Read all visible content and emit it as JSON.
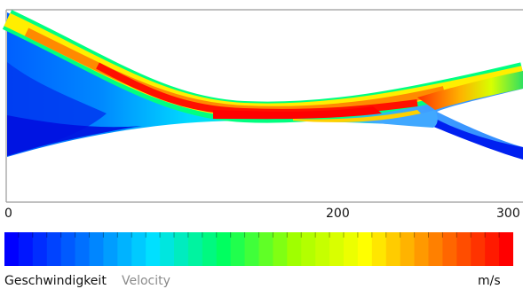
{
  "scale": {
    "tick_labels": [
      "0",
      "200",
      "300"
    ],
    "min": 0,
    "max": 300,
    "colormap": [
      "#0000ff",
      "#0070ff",
      "#00e0ff",
      "#00ff60",
      "#a0ff00",
      "#ffff00",
      "#ff8000",
      "#ff0000"
    ]
  },
  "caption": {
    "label_de": "Geschwindigkeit",
    "label_en": "Velocity",
    "unit": "m/s"
  }
}
